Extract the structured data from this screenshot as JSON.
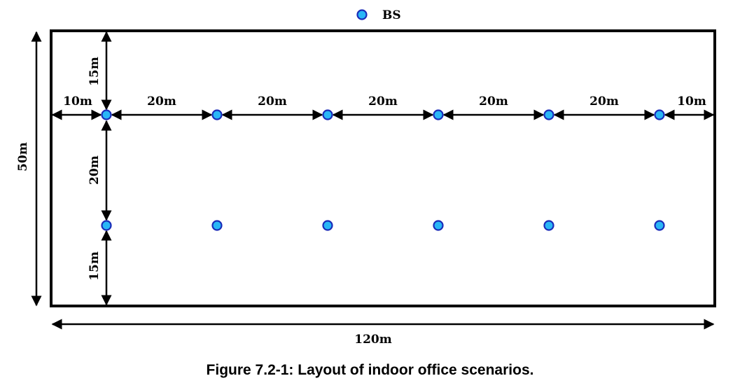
{
  "legend": {
    "label": "BS",
    "marker_color": "#29B6F6",
    "marker_border": "#1A2BB8"
  },
  "dimensions": {
    "top_margin": "15m",
    "left_edge": "10m",
    "bs_spacing": [
      "20m",
      "20m",
      "20m",
      "20m",
      "20m"
    ],
    "right_edge": "10m",
    "row_spacing": "20m",
    "bottom_margin": "15m",
    "height": "50m",
    "width": "120m"
  },
  "bs_grid": {
    "rows": 2,
    "columns": 6
  },
  "caption": "Figure 7.2-1: Layout of indoor office scenarios."
}
